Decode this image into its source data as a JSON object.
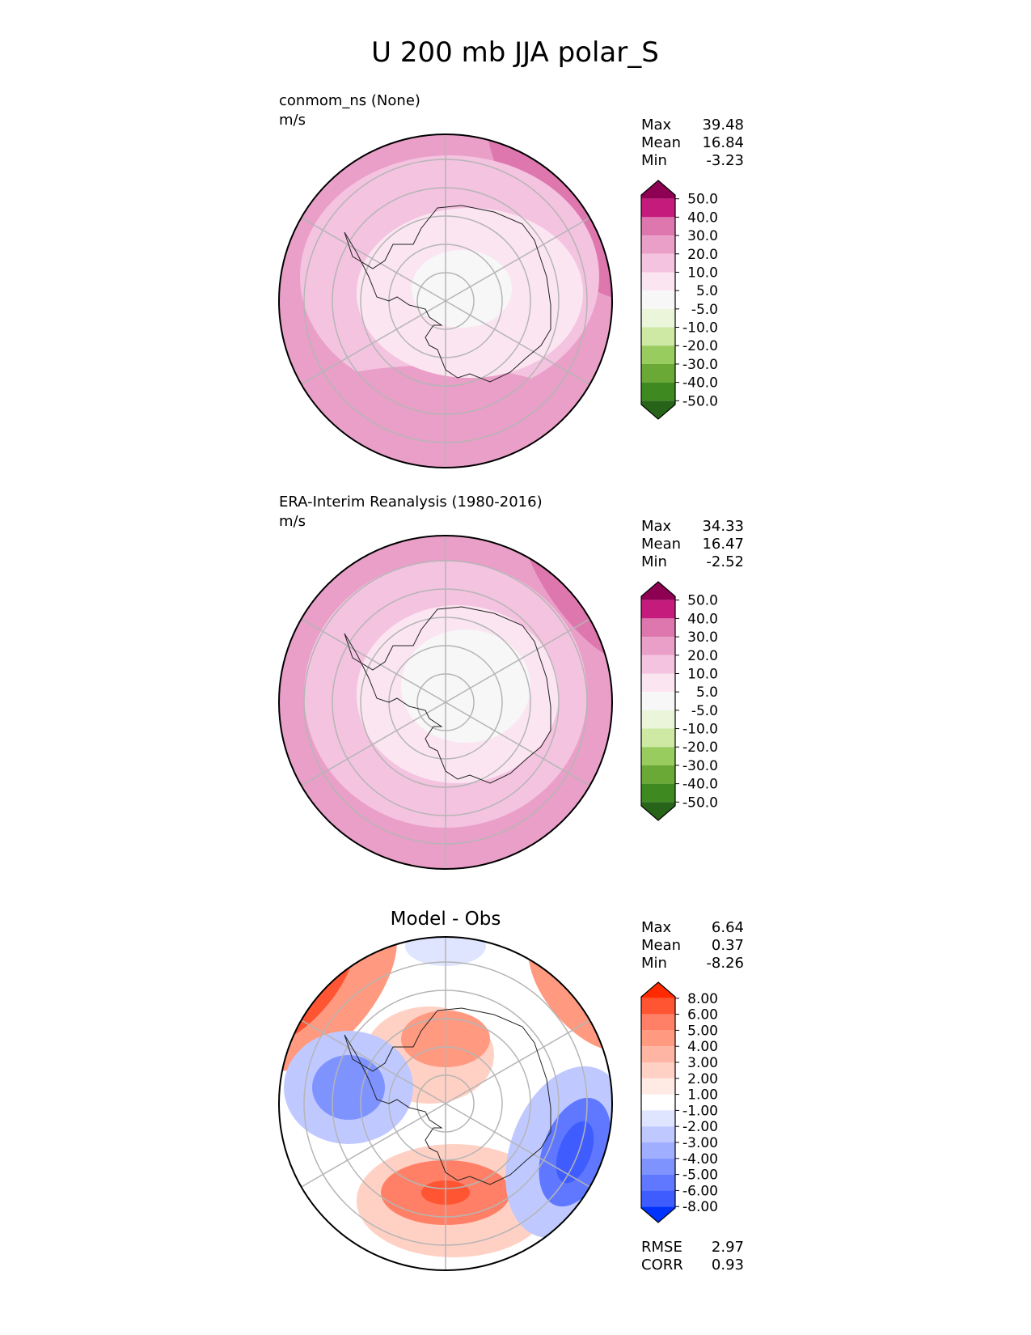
{
  "title": "U 200 mb JJA polar_S",
  "chart_data": [
    {
      "type": "heatmap",
      "projection": "south-polar-stereographic",
      "title": "conmom_ns (None)",
      "units": "m/s",
      "stats": [
        {
          "label": "Max",
          "value": "39.48"
        },
        {
          "label": "Mean",
          "value": "16.84"
        },
        {
          "label": "Min",
          "value": "-3.23"
        }
      ],
      "colorbar": {
        "ticks": [
          "50.0",
          "40.0",
          "30.0",
          "20.0",
          "10.0",
          "5.0",
          "-5.0",
          "-10.0",
          "-20.0",
          "-30.0",
          "-40.0",
          "-50.0"
        ],
        "colors": [
          "#8e0152",
          "#c51b7d",
          "#de77ae",
          "#e99fc8",
          "#f4c3e0",
          "#fbe5f1",
          "#f7f7f7",
          "#eaf5da",
          "#cde9a4",
          "#99cc5f",
          "#6aa935",
          "#3f8a20",
          "#276419"
        ],
        "extend": "both"
      }
    },
    {
      "type": "heatmap",
      "projection": "south-polar-stereographic",
      "title": "ERA-Interim Reanalysis (1980-2016)",
      "units": "m/s",
      "stats": [
        {
          "label": "Max",
          "value": "34.33"
        },
        {
          "label": "Mean",
          "value": "16.47"
        },
        {
          "label": "Min",
          "value": "-2.52"
        }
      ],
      "colorbar": {
        "ticks": [
          "50.0",
          "40.0",
          "30.0",
          "20.0",
          "10.0",
          "5.0",
          "-5.0",
          "-10.0",
          "-20.0",
          "-30.0",
          "-40.0",
          "-50.0"
        ],
        "colors": [
          "#8e0152",
          "#c51b7d",
          "#de77ae",
          "#e99fc8",
          "#f4c3e0",
          "#fbe5f1",
          "#f7f7f7",
          "#eaf5da",
          "#cde9a4",
          "#99cc5f",
          "#6aa935",
          "#3f8a20",
          "#276419"
        ],
        "extend": "both"
      }
    },
    {
      "type": "heatmap",
      "projection": "south-polar-stereographic",
      "title": "Model - Obs",
      "units": "",
      "stats": [
        {
          "label": "Max",
          "value": "6.64"
        },
        {
          "label": "Mean",
          "value": "0.37"
        },
        {
          "label": "Min",
          "value": "-8.26"
        }
      ],
      "metrics": [
        {
          "label": "RMSE",
          "value": "2.97"
        },
        {
          "label": "CORR",
          "value": "0.93"
        }
      ],
      "colorbar": {
        "ticks": [
          "8.00",
          "6.00",
          "5.00",
          "4.00",
          "3.00",
          "2.00",
          "1.00",
          "-1.00",
          "-2.00",
          "-3.00",
          "-4.00",
          "-5.00",
          "-6.00",
          "-8.00"
        ],
        "colors": [
          "#ff2a00",
          "#ff5533",
          "#ff8066",
          "#ff9a80",
          "#ffb5a3",
          "#ffd0c4",
          "#ffeae4",
          "#ffffff",
          "#dfe4ff",
          "#bfc9ff",
          "#9faeff",
          "#7f93ff",
          "#5f78ff",
          "#3f5dff",
          "#0033ff"
        ],
        "extend": "both"
      }
    }
  ]
}
